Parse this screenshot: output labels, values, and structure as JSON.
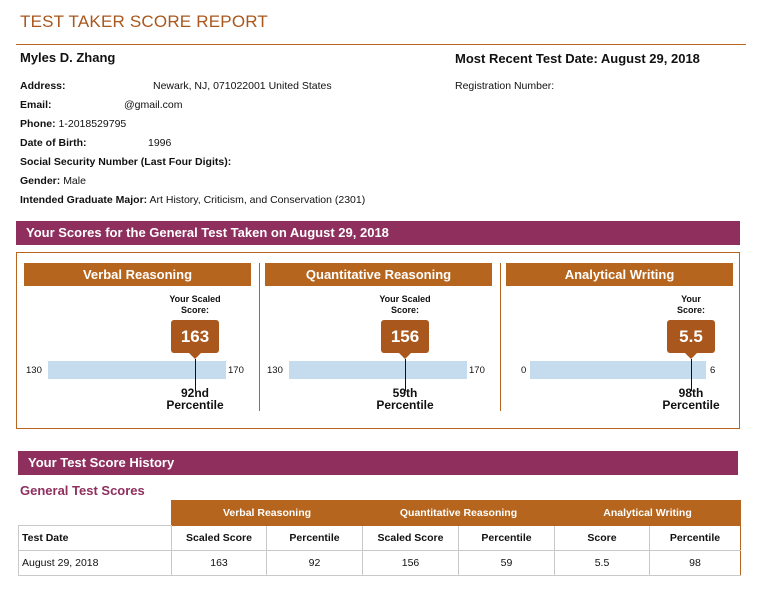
{
  "report": {
    "title": "TEST TAKER SCORE REPORT",
    "name": "Myles D. Zhang",
    "most_recent_test": "Most Recent Test Date: August 29, 2018"
  },
  "info": {
    "address_label": "Address:",
    "address_value": "Newark, NJ, 071022001 United States",
    "email_label": "Email:",
    "email_value": "@gmail.com",
    "phone_label": "Phone:",
    "phone_value": "1-2018529795",
    "dob_label": "Date of Birth:",
    "dob_value": "1996",
    "ssn_label": "Social Security Number (Last Four Digits):",
    "gender_label": "Gender:",
    "gender_value": "Male",
    "major_label": "Intended Graduate Major:",
    "major_value": "Art History, Criticism, and Conservation (2301)",
    "registration_label": "Registration Number:"
  },
  "scores_banner": "Your Scores for the General Test Taken on August 29, 2018",
  "panels": [
    {
      "heading": "Verbal Reasoning",
      "scaled_label": "Your Scaled Score:",
      "score": "163",
      "min": "130",
      "max": "170",
      "score_num": 163,
      "min_num": 130,
      "max_num": 170,
      "percentile_line1": "92nd",
      "percentile_line2": "Percentile"
    },
    {
      "heading": "Quantitative Reasoning",
      "scaled_label": "Your Scaled Score:",
      "score": "156",
      "min": "130",
      "max": "170",
      "score_num": 156,
      "min_num": 130,
      "max_num": 170,
      "percentile_line1": "59th",
      "percentile_line2": "Percentile"
    },
    {
      "heading": "Analytical Writing",
      "scaled_label": "Your Score:",
      "score": "5.5",
      "min": "0",
      "max": "6",
      "score_num": 5.5,
      "min_num": 0,
      "max_num": 6,
      "percentile_line1": "98th",
      "percentile_line2": "Percentile"
    }
  ],
  "history": {
    "banner": "Your Test Score History",
    "subheading": "General Test Scores",
    "groups": [
      "Verbal Reasoning",
      "Quantitative Reasoning",
      "Analytical Writing"
    ],
    "columns": [
      "Test Date",
      "Scaled Score",
      "Percentile",
      "Scaled Score",
      "Percentile",
      "Score",
      "Percentile"
    ],
    "rows": [
      [
        "August 29, 2018",
        "163",
        "92",
        "156",
        "59",
        "5.5",
        "98"
      ]
    ]
  },
  "colors": {
    "accent_orange": "#b5651d",
    "banner_purple": "#8e2f5e",
    "bar_blue": "#c5dbee"
  }
}
